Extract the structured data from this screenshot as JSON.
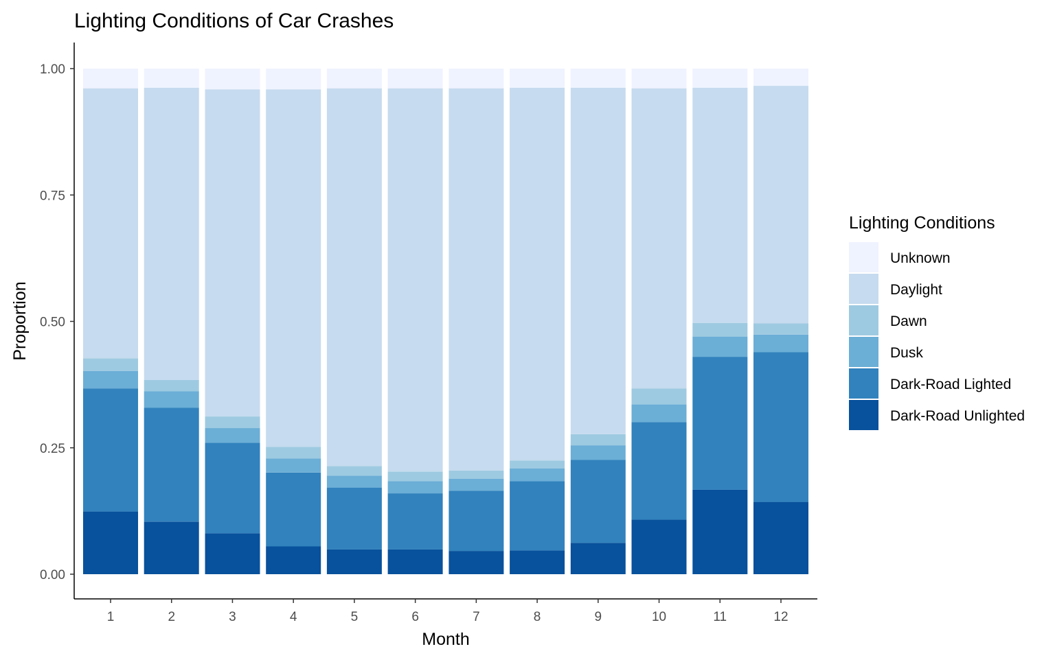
{
  "chart_data": {
    "type": "bar",
    "stacked": true,
    "title": "Lighting Conditions of Car Crashes",
    "xlabel": "Month",
    "ylabel": "Proportion",
    "ylim": [
      0,
      1.05
    ],
    "yticks": [
      0,
      0.25,
      0.5,
      0.75,
      1.0
    ],
    "ytick_labels": [
      "0.00",
      "0.25",
      "0.50",
      "0.75",
      "1.00"
    ],
    "categories": [
      "1",
      "2",
      "3",
      "4",
      "5",
      "6",
      "7",
      "8",
      "9",
      "10",
      "11",
      "12"
    ],
    "grid": false,
    "legend": {
      "title": "Lighting Conditions",
      "position": "right"
    },
    "series": [
      {
        "name": "Dark-Road Unlighted",
        "color": "#08519c",
        "values": [
          0.124,
          0.104,
          0.081,
          0.055,
          0.049,
          0.049,
          0.046,
          0.047,
          0.062,
          0.108,
          0.167,
          0.143
        ]
      },
      {
        "name": "Dark-Road Lighted",
        "color": "#3182bd",
        "values": [
          0.243,
          0.225,
          0.179,
          0.146,
          0.122,
          0.111,
          0.119,
          0.137,
          0.164,
          0.193,
          0.263,
          0.296
        ]
      },
      {
        "name": "Dusk",
        "color": "#6baed6",
        "values": [
          0.035,
          0.033,
          0.029,
          0.028,
          0.024,
          0.024,
          0.024,
          0.025,
          0.029,
          0.035,
          0.04,
          0.035
        ]
      },
      {
        "name": "Dawn",
        "color": "#9ecae1",
        "values": [
          0.025,
          0.022,
          0.023,
          0.023,
          0.019,
          0.019,
          0.016,
          0.016,
          0.022,
          0.031,
          0.027,
          0.022
        ]
      },
      {
        "name": "Daylight",
        "color": "#c6dbef",
        "values": [
          0.534,
          0.578,
          0.647,
          0.707,
          0.747,
          0.758,
          0.756,
          0.737,
          0.685,
          0.594,
          0.465,
          0.47
        ]
      },
      {
        "name": "Unknown",
        "color": "#eff3ff",
        "values": [
          0.039,
          0.038,
          0.041,
          0.041,
          0.039,
          0.039,
          0.039,
          0.038,
          0.038,
          0.039,
          0.038,
          0.034
        ]
      }
    ],
    "legend_order": [
      "Unknown",
      "Daylight",
      "Dawn",
      "Dusk",
      "Dark-Road Lighted",
      "Dark-Road Unlighted"
    ]
  }
}
